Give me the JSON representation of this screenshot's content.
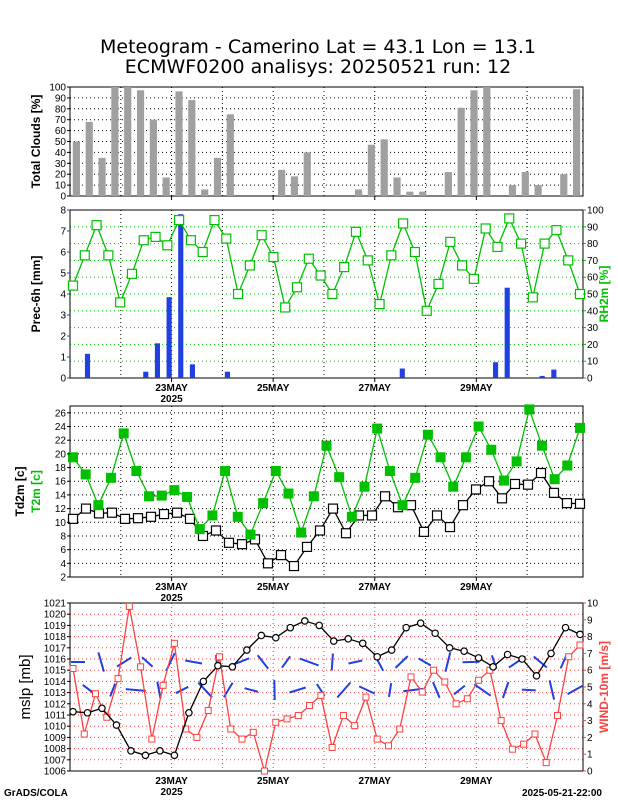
{
  "title_line1": "Meteogram - Camerino Lat = 43.1 Lon = 13.1",
  "title_line2": "ECMWF0200 analisys: 20250521 run: 12",
  "footer_left": "GrADS/COLA",
  "footer_right": "2025-05-21-22:00",
  "colors": {
    "cloud_bar": "#a0a0a0",
    "precip_bar": "#2040e0",
    "rh_line": "#00c000",
    "t2m_line": "#00c000",
    "td2m_line": "#000000",
    "mslp_line": "#000000",
    "wind_line": "#ff4040",
    "barb": "#2040e0"
  },
  "x_ticks": [
    {
      "label": "23MAY",
      "year": "2025",
      "day": 2
    },
    {
      "label": "25MAY",
      "year": "",
      "day": 4
    },
    {
      "label": "27MAY",
      "year": "",
      "day": 6
    },
    {
      "label": "29MAY",
      "year": "",
      "day": 8
    }
  ],
  "chart_data": [
    {
      "type": "bar",
      "ylabel": "Total Clouds [%]",
      "ylim": [
        0,
        100
      ],
      "yticks": [
        0,
        10,
        20,
        30,
        40,
        50,
        60,
        70,
        80,
        90,
        100
      ],
      "values": [
        50,
        68,
        35,
        100,
        100,
        97,
        70,
        17,
        96,
        88,
        6,
        35,
        75,
        0,
        0,
        0,
        24,
        18,
        40,
        0,
        0,
        0,
        6,
        47,
        52,
        17,
        4,
        4,
        0,
        22,
        81,
        97,
        100,
        0,
        10,
        22,
        10,
        0,
        20,
        98
      ]
    },
    {
      "type": "bar+line",
      "ylabel": "Prec-6h [mm]",
      "ylim": [
        0,
        8
      ],
      "yticks": [
        0,
        1,
        2,
        3,
        4,
        5,
        6,
        7,
        8
      ],
      "y2label": "RH2m [%]",
      "y2lim": [
        0,
        100
      ],
      "y2ticks": [
        0,
        10,
        20,
        30,
        40,
        50,
        60,
        70,
        80,
        90,
        100
      ],
      "series": [
        {
          "name": "Prec-6h [mm]",
          "values": [
            0,
            1.15,
            0,
            0,
            0,
            0,
            0.3,
            1.65,
            3.85,
            7.8,
            0.65,
            0,
            0,
            0.3,
            0,
            0,
            0,
            0,
            0,
            0,
            0,
            0,
            0,
            0,
            0,
            0,
            0,
            0,
            0.45,
            0,
            0,
            0,
            0,
            0,
            0,
            0,
            0.75,
            4.3,
            0,
            0,
            0.1,
            0.4,
            0,
            0
          ]
        },
        {
          "name": "RH2m [%]",
          "values": [
            55,
            73,
            91,
            73,
            45,
            62,
            82,
            84,
            79,
            94,
            82,
            75,
            94,
            83,
            50,
            67,
            85,
            72,
            42,
            54,
            71,
            61,
            50,
            66,
            87,
            70,
            44,
            73,
            92,
            75,
            40,
            56,
            81,
            67,
            59,
            89,
            78,
            95,
            80,
            48,
            80,
            88,
            70,
            50
          ]
        }
      ]
    },
    {
      "type": "line",
      "ylabel": "T2m [c]",
      "ylabel2": "Td2m [c]",
      "ylim": [
        2,
        27
      ],
      "yticks": [
        2,
        4,
        6,
        8,
        10,
        12,
        14,
        16,
        18,
        20,
        22,
        24,
        26
      ],
      "series": [
        {
          "name": "T2m [c]",
          "values": [
            19.5,
            17,
            12.5,
            16.5,
            23,
            17.5,
            13.8,
            13.9,
            14.7,
            13.7,
            9,
            11,
            17.5,
            10.8,
            8.2,
            12.8,
            17.5,
            14.2,
            8.5,
            13.8,
            21.2,
            16.6,
            10.8,
            15.2,
            23.7,
            17.5,
            12.5,
            16.5,
            22.8,
            19.5,
            15.2,
            19.5,
            24,
            20.6,
            16.1,
            18.9,
            26.5,
            21.2,
            16.3,
            18.3,
            23.8
          ]
        },
        {
          "name": "Td2m [c]",
          "values": [
            10.5,
            12,
            11.3,
            11.4,
            10.5,
            10.6,
            10.8,
            11.2,
            11.4,
            10.5,
            8,
            8.8,
            7,
            6.8,
            7.5,
            4,
            5.2,
            3.6,
            6.4,
            8.8,
            12,
            8.4,
            11,
            11,
            13.8,
            12.2,
            12.5,
            8.6,
            11,
            9.3,
            12.5,
            14.8,
            16,
            13.5,
            15.6,
            15.5,
            17.2,
            14.3,
            12.8,
            12.7
          ]
        }
      ]
    },
    {
      "type": "line",
      "ylabel": "mslp [mb]",
      "ylim": [
        1006,
        1021
      ],
      "yticks": [
        1006,
        1007,
        1008,
        1009,
        1010,
        1011,
        1012,
        1013,
        1014,
        1015,
        1016,
        1017,
        1018,
        1019,
        1020,
        1021
      ],
      "y2label": "WIND-10m [m/s]",
      "y2lim": [
        0,
        10
      ],
      "y2ticks": [
        0,
        1,
        2,
        3,
        4,
        5,
        6,
        7,
        8,
        9,
        10
      ],
      "series": [
        {
          "name": "mslp [mb]",
          "values": [
            1011.3,
            1011.2,
            1011.6,
            1010.1,
            1007.8,
            1007.4,
            1007.8,
            1007.4,
            1011.2,
            1014,
            1015.4,
            1015.3,
            1016.8,
            1018.1,
            1017.9,
            1018.8,
            1019.4,
            1019,
            1017.6,
            1017.8,
            1017.4,
            1016.2,
            1016.8,
            1018.8,
            1019.2,
            1018.3,
            1017,
            1016.7,
            1016.1,
            1015.3,
            1016.4,
            1016,
            1014.5,
            1016.5,
            1018.8,
            1018.2
          ]
        },
        {
          "name": "WIND-10m [m/s]",
          "values": [
            6.1,
            2.2,
            4.6,
            3.2,
            5.5,
            9.8,
            6.2,
            1.9,
            5.1,
            7.6,
            2.5,
            2,
            3.6,
            6.8,
            2.5,
            1.9,
            2.3,
            0,
            2.9,
            3.1,
            3.3,
            3.9,
            4.5,
            1.4,
            3.3,
            2.7,
            4.4,
            1.9,
            1.5,
            2.5,
            5.6,
            4.7,
            6,
            5.3,
            4,
            4.3,
            5.4,
            6,
            3,
            1.3,
            1.6,
            2.2,
            0.5,
            3.3,
            6.8,
            7.5
          ]
        }
      ]
    }
  ]
}
